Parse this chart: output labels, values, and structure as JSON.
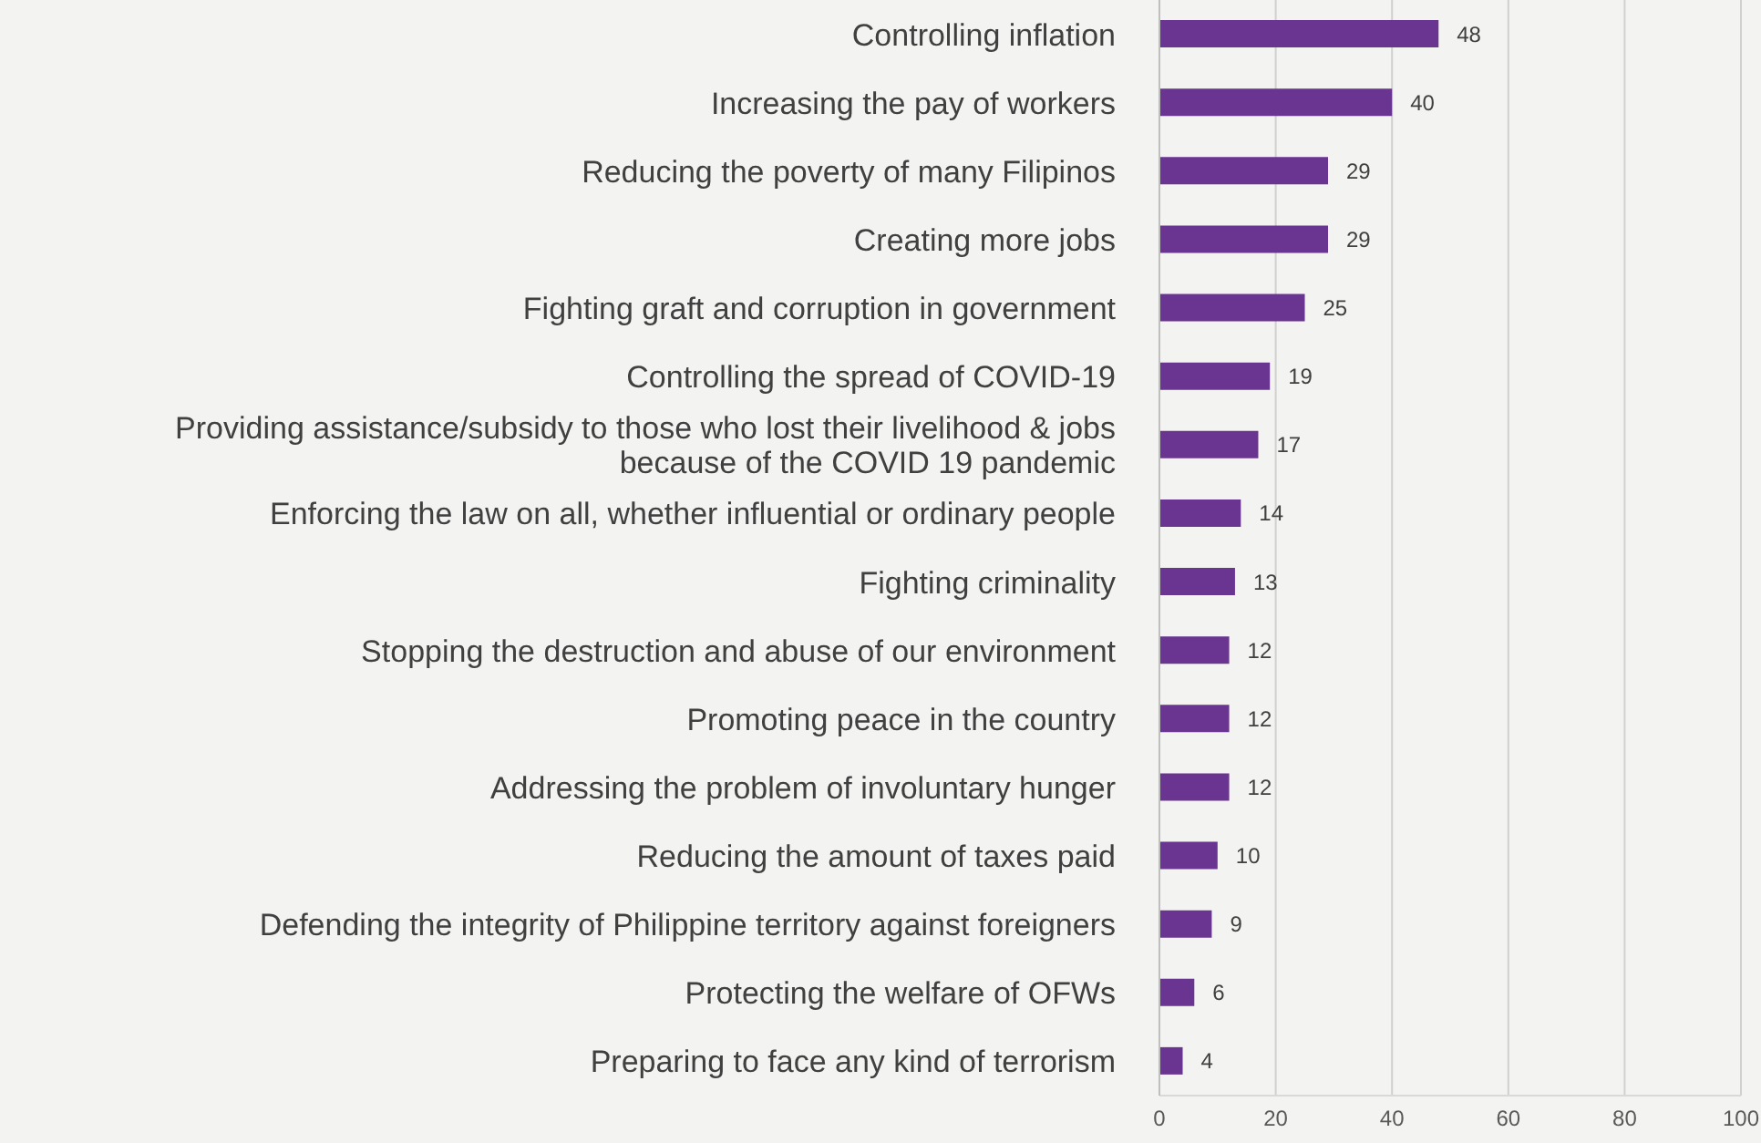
{
  "chart_data": {
    "type": "bar",
    "orientation": "horizontal",
    "categories": [
      "Controlling inflation",
      "Increasing the pay of workers",
      "Reducing the poverty of many Filipinos",
      "Creating more jobs",
      "Fighting graft and corruption in government",
      "Controlling the spread of COVID-19",
      "Providing assistance/subsidy to those who lost their livelihood & jobs because of the COVID 19 pandemic",
      "Enforcing the law on all, whether influential or ordinary people",
      "Fighting criminality",
      "Stopping the destruction and abuse of our environment",
      "Promoting peace in the country",
      "Addressing the problem of involuntary hunger",
      "Reducing the amount of taxes paid",
      "Defending the integrity of Philippine territory against foreigners",
      "Protecting the welfare of OFWs",
      "Preparing to face any kind of terrorism"
    ],
    "values": [
      48,
      40,
      29,
      29,
      25,
      19,
      17,
      14,
      13,
      12,
      12,
      12,
      10,
      9,
      6,
      4
    ],
    "color": "#6a3590",
    "xlim": [
      0,
      100
    ],
    "xticks": [
      0,
      20,
      40,
      60,
      80,
      100
    ],
    "grid": "x",
    "data_labels": true,
    "legend": false
  }
}
